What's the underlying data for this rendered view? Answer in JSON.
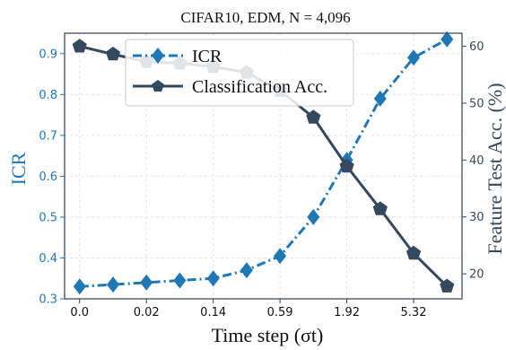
{
  "chart_data": {
    "type": "line",
    "title": "CIFAR10, EDM, N = 4,096",
    "xlabel": "Time step (σt)",
    "ylabel_left": "ICR",
    "ylabel_right": "Feature Test Acc. (%)",
    "x_tick_labels": [
      "0.0",
      "0.02",
      "0.14",
      "0.59",
      "1.92",
      "5.32"
    ],
    "x_tick_indices": [
      0,
      2,
      4,
      6,
      8,
      10
    ],
    "y_left_lim": [
      0.3,
      0.95
    ],
    "y_left_ticks": [
      0.3,
      0.4,
      0.5,
      0.6,
      0.7,
      0.8,
      0.9
    ],
    "y_right_lim": [
      15.6,
      62.3
    ],
    "y_right_ticks": [
      20,
      30,
      40,
      50,
      60
    ],
    "grid": true,
    "legend_position": "top-left",
    "series": [
      {
        "name": "ICR",
        "axis": "left",
        "color": "#1f77b4",
        "marker": "diamond",
        "line_style": "dash-dot",
        "x": [
          0,
          1,
          2,
          3,
          4,
          5,
          6,
          7,
          8,
          9,
          10,
          11
        ],
        "values": [
          0.33,
          0.335,
          0.34,
          0.345,
          0.35,
          0.37,
          0.405,
          0.5,
          0.64,
          0.79,
          0.89,
          0.935
        ]
      },
      {
        "name": "Classification Acc.",
        "axis": "right",
        "color": "#34495e",
        "marker": "pentagon",
        "line_style": "solid",
        "x": [
          0,
          1,
          2,
          3,
          4,
          5,
          6,
          7,
          8,
          9,
          10,
          11
        ],
        "values": [
          60.0,
          58.6,
          57.3,
          57.0,
          56.4,
          55.4,
          52.2,
          47.5,
          38.9,
          31.4,
          23.6,
          17.8
        ]
      }
    ]
  }
}
